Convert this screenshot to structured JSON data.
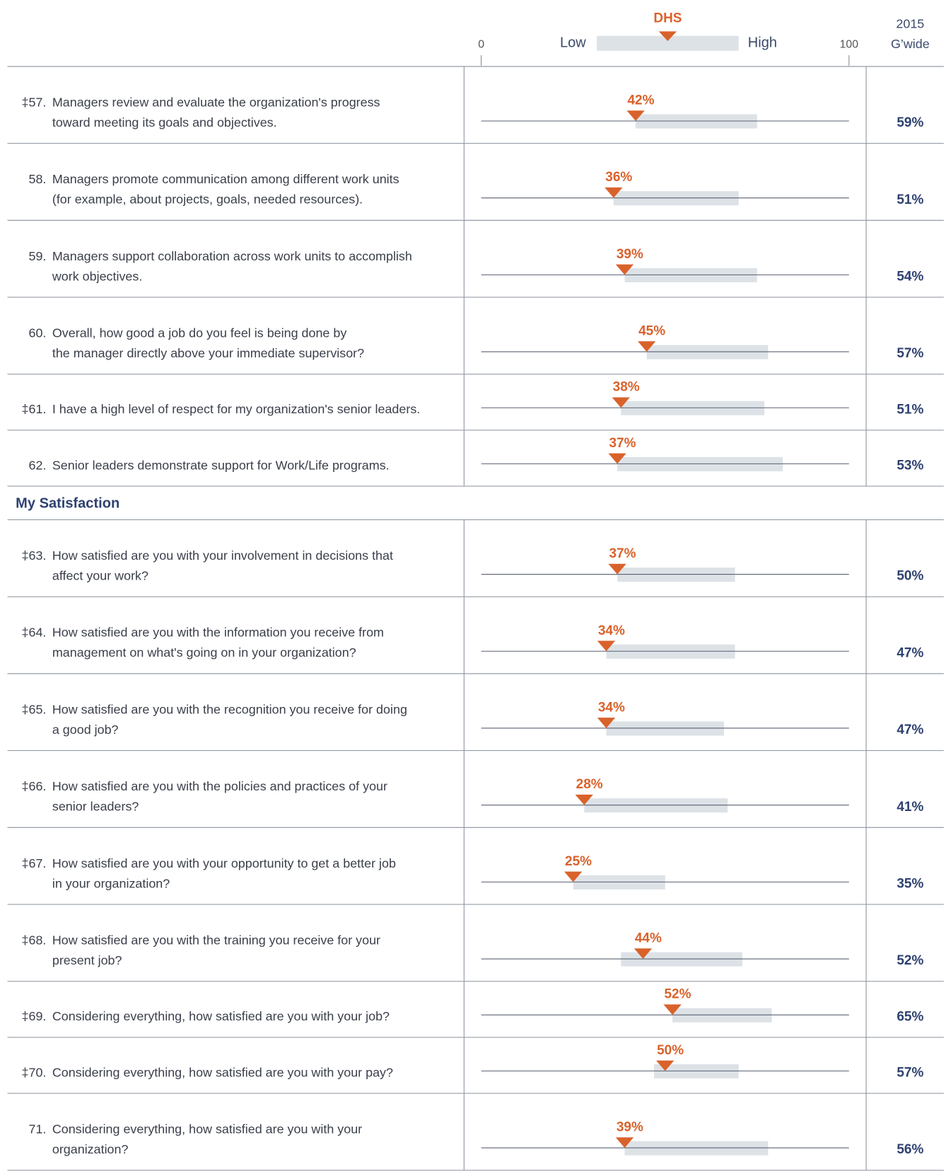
{
  "chart_data": {
    "type": "range-dot",
    "header": {
      "dhs": "DHS",
      "low": "Low",
      "high": "High",
      "year": "2015",
      "gwide": "G’wide"
    },
    "xlim": [
      0,
      100
    ],
    "xticks": [
      0,
      100
    ],
    "marker_color": "#d9622b",
    "range_color": "#dde2e7",
    "groups": [
      {
        "rows": [
          {
            "number": "‡57.",
            "lines": [
              "Managers review and evaluate the organization's progress",
              "toward meeting its goals and objectives."
            ],
            "value": 42,
            "value_label": "42%",
            "range": [
              42,
              75
            ],
            "gwide": 59,
            "gwide_label": "59%"
          },
          {
            "number": "58.",
            "lines": [
              "Managers promote communication among different work units",
              "(for example, about projects, goals, needed resources)."
            ],
            "value": 36,
            "value_label": "36%",
            "range": [
              36,
              70
            ],
            "gwide": 51,
            "gwide_label": "51%"
          },
          {
            "number": "59.",
            "lines": [
              "Managers support collaboration across work units to accomplish",
              "work objectives."
            ],
            "value": 39,
            "value_label": "39%",
            "range": [
              39,
              75
            ],
            "gwide": 54,
            "gwide_label": "54%"
          },
          {
            "number": "60.",
            "lines": [
              "Overall, how good a job do you feel is being done by",
              "the manager directly above your immediate supervisor?"
            ],
            "value": 45,
            "value_label": "45%",
            "range": [
              45,
              78
            ],
            "gwide": 57,
            "gwide_label": "57%"
          },
          {
            "number": "‡61.",
            "lines": [
              "I have a high level of respect for my organization's senior leaders."
            ],
            "value": 38,
            "value_label": "38%",
            "range": [
              38,
              77
            ],
            "gwide": 51,
            "gwide_label": "51%"
          },
          {
            "number": "62.",
            "lines": [
              "Senior leaders demonstrate support for Work/Life programs."
            ],
            "value": 37,
            "value_label": "37%",
            "range": [
              37,
              82
            ],
            "gwide": 53,
            "gwide_label": "53%"
          }
        ]
      },
      {
        "title": "My Satisfaction",
        "rows": [
          {
            "number": "‡63.",
            "lines": [
              "How satisfied are you with your involvement in decisions that",
              "affect your work?"
            ],
            "value": 37,
            "value_label": "37%",
            "range": [
              37,
              69
            ],
            "gwide": 50,
            "gwide_label": "50%"
          },
          {
            "number": "‡64.",
            "lines": [
              "How satisfied are you with the information you receive from",
              "management on what's going on in your organization?"
            ],
            "value": 34,
            "value_label": "34%",
            "range": [
              34,
              69
            ],
            "gwide": 47,
            "gwide_label": "47%"
          },
          {
            "number": "‡65.",
            "lines": [
              "How satisfied are you with the recognition you receive for doing",
              "a good job?"
            ],
            "value": 34,
            "value_label": "34%",
            "range": [
              34,
              66
            ],
            "gwide": 47,
            "gwide_label": "47%"
          },
          {
            "number": "‡66.",
            "lines": [
              "How satisfied are you with the policies and practices of your",
              "senior leaders?"
            ],
            "value": 28,
            "value_label": "28%",
            "range": [
              28,
              67
            ],
            "gwide": 41,
            "gwide_label": "41%"
          },
          {
            "number": "‡67.",
            "lines": [
              "How satisfied are you with your opportunity to get a better job",
              "in your organization?"
            ],
            "value": 25,
            "value_label": "25%",
            "range": [
              25,
              50
            ],
            "gwide": 35,
            "gwide_label": "35%"
          },
          {
            "number": "‡68.",
            "lines": [
              "How satisfied are you with the training you receive for your",
              "present job?"
            ],
            "value": 44,
            "value_label": "44%",
            "range": [
              38,
              71
            ],
            "gwide": 52,
            "gwide_label": "52%"
          },
          {
            "number": "‡69.",
            "lines": [
              "Considering everything, how satisfied are you with your job?"
            ],
            "value": 52,
            "value_label": "52%",
            "range": [
              52,
              79
            ],
            "gwide": 65,
            "gwide_label": "65%"
          },
          {
            "number": "‡70.",
            "lines": [
              "Considering everything, how satisfied are you with your pay?"
            ],
            "value": 50,
            "value_label": "50%",
            "range": [
              47,
              70
            ],
            "gwide": 57,
            "gwide_label": "57%"
          },
          {
            "number": "71.",
            "lines": [
              "Considering everything, how satisfied are you with your",
              "organization?"
            ],
            "value": 39,
            "value_label": "39%",
            "range": [
              39,
              78
            ],
            "gwide": 56,
            "gwide_label": "56%"
          }
        ]
      }
    ]
  }
}
